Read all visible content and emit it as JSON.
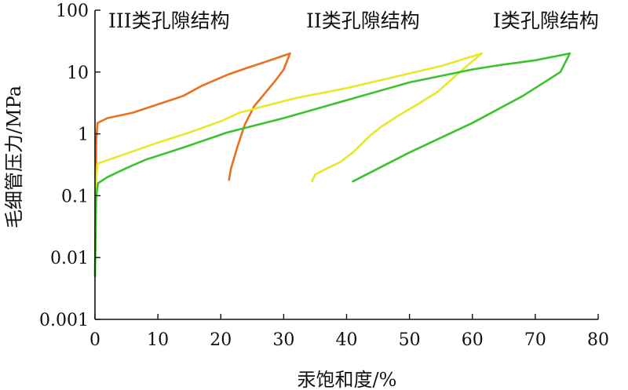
{
  "chart_data": {
    "type": "line",
    "xlabel": "汞饱和度/%",
    "ylabel": "毛细管压力/MPa",
    "xlim": [
      0,
      80
    ],
    "ylim": [
      0.001,
      100
    ],
    "yscale": "log",
    "x_ticks": [
      "0",
      "10",
      "20",
      "30",
      "40",
      "50",
      "60",
      "70",
      "80"
    ],
    "y_ticks": [
      "0.001",
      "0.01",
      "0.1",
      "1",
      "10",
      "100"
    ],
    "grid": false,
    "annotations": [
      "III类孔隙结构",
      "II类孔隙结构",
      "I类孔隙结构"
    ],
    "series": [
      {
        "color": "#e8701e",
        "injection": [
          [
            0,
            0.005
          ],
          [
            0.2,
            0.8
          ],
          [
            0.4,
            1.5
          ],
          [
            2,
            1.8
          ],
          [
            6,
            2.2
          ],
          [
            10,
            3.0
          ],
          [
            14,
            4.1
          ],
          [
            17,
            6.0
          ],
          [
            21,
            9.0
          ],
          [
            24,
            11.5
          ],
          [
            27,
            14.5
          ],
          [
            31,
            20
          ]
        ],
        "withdrawal": [
          [
            31,
            20
          ],
          [
            30,
            11
          ],
          [
            28.7,
            7.3
          ],
          [
            27,
            4.5
          ],
          [
            25.3,
            2.8
          ],
          [
            23.8,
            1.4
          ],
          [
            22.6,
            0.6
          ],
          [
            21.6,
            0.27
          ],
          [
            21.3,
            0.18
          ]
        ]
      },
      {
        "color": "#e8e82a",
        "injection": [
          [
            0,
            0.005
          ],
          [
            0.2,
            0.2
          ],
          [
            0.4,
            0.33
          ],
          [
            5,
            0.48
          ],
          [
            10,
            0.72
          ],
          [
            15,
            1.05
          ],
          [
            20,
            1.6
          ],
          [
            23,
            2.2
          ],
          [
            28,
            3.0
          ],
          [
            32,
            3.8
          ],
          [
            40,
            5.5
          ],
          [
            48,
            8.5
          ],
          [
            55,
            12.5
          ],
          [
            61.5,
            20
          ]
        ],
        "withdrawal": [
          [
            61.5,
            20
          ],
          [
            58,
            10
          ],
          [
            54.5,
            4.8
          ],
          [
            51.5,
            3.1
          ],
          [
            48,
            1.9
          ],
          [
            45.5,
            1.3
          ],
          [
            43.8,
            0.95
          ],
          [
            41,
            0.5
          ],
          [
            39,
            0.35
          ],
          [
            37,
            0.28
          ],
          [
            35,
            0.22
          ],
          [
            34.5,
            0.17
          ]
        ]
      },
      {
        "color": "#3cc22d",
        "injection": [
          [
            0,
            0.005
          ],
          [
            0.2,
            0.1
          ],
          [
            0.5,
            0.16
          ],
          [
            2,
            0.2
          ],
          [
            5,
            0.28
          ],
          [
            8,
            0.38
          ],
          [
            14,
            0.6
          ],
          [
            21,
            1.05
          ],
          [
            30,
            1.8
          ],
          [
            40,
            3.5
          ],
          [
            50,
            6.8
          ],
          [
            60,
            11.0
          ],
          [
            64,
            12.8
          ],
          [
            70,
            15.5
          ],
          [
            75.5,
            20
          ]
        ],
        "withdrawal": [
          [
            75.5,
            20
          ],
          [
            74,
            10
          ],
          [
            68,
            4.1
          ],
          [
            60,
            1.5
          ],
          [
            50,
            0.5
          ],
          [
            41,
            0.17
          ]
        ]
      }
    ]
  }
}
